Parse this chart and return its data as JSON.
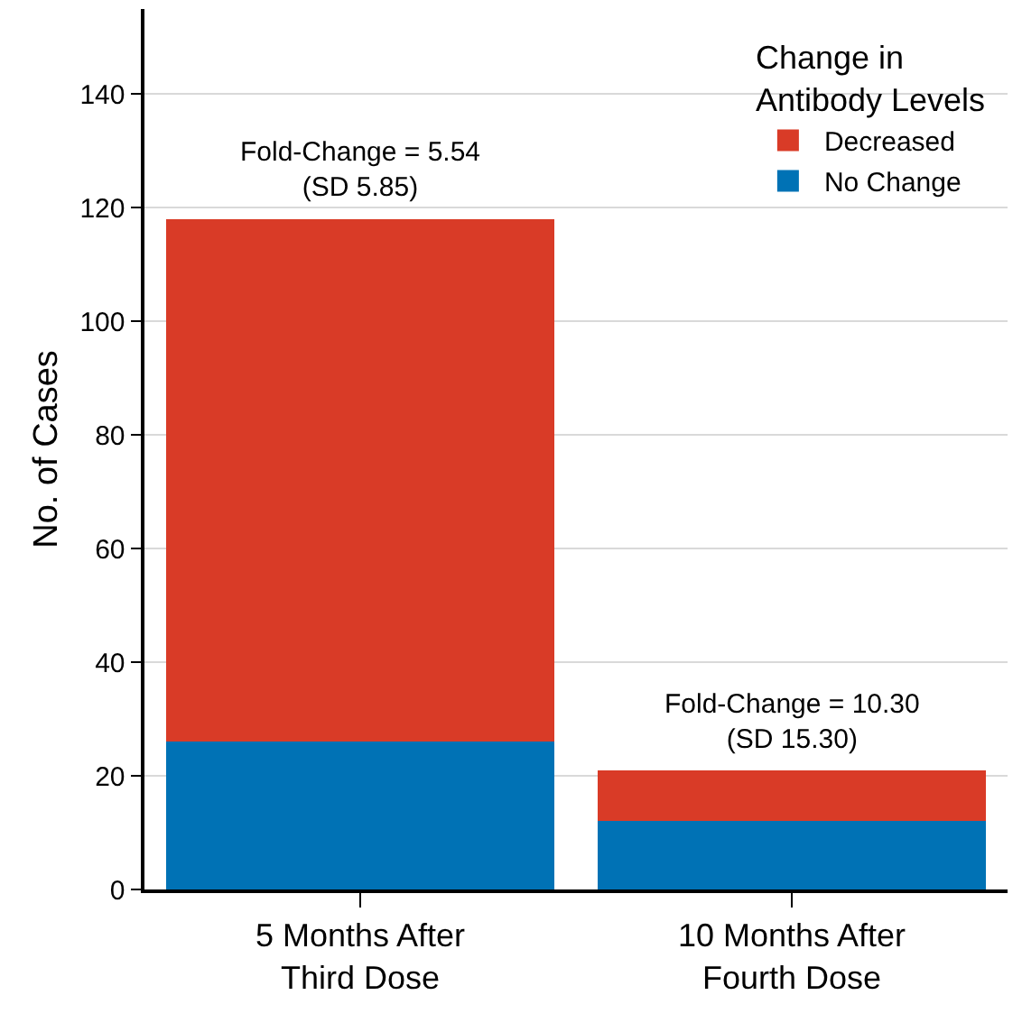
{
  "chart_data": {
    "type": "bar",
    "stacked": true,
    "categories": [
      "5 Months After\nThird Dose",
      "10 Months After\nFourth Dose"
    ],
    "series": [
      {
        "name": "No Change",
        "color": "#0072b5",
        "values": [
          26,
          12
        ]
      },
      {
        "name": "Decreased",
        "color": "#d93b27",
        "values": [
          92,
          9
        ]
      }
    ],
    "ylabel": "No. of Cases",
    "legend_title": "Change in\nAntibody Levels",
    "legend": "top right",
    "grid": "y",
    "ylim": [
      0,
      155
    ],
    "yticks": [
      0,
      20,
      40,
      60,
      80,
      100,
      120,
      140
    ],
    "annotations": [
      {
        "text": "Fold-Change = 5.54\n(SD 5.85)",
        "x": "5 Months After\nThird Dose",
        "y": 118
      },
      {
        "text": "Fold-Change = 10.30\n(SD 15.30)",
        "x": "10 Months After\nFourth Dose",
        "y": 21
      }
    ]
  }
}
